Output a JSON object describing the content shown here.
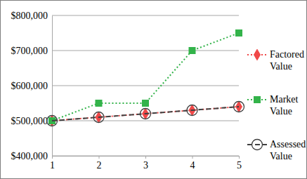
{
  "chart_data": {
    "type": "line",
    "x": [
      1,
      2,
      3,
      4,
      5
    ],
    "xlim": [
      1,
      5
    ],
    "xticks": [
      1,
      2,
      3,
      4,
      5
    ],
    "ylim": [
      400000,
      800000
    ],
    "yticks": [
      {
        "value": 400000,
        "label": "$400,000"
      },
      {
        "value": 500000,
        "label": "$500,000"
      },
      {
        "value": 600000,
        "label": "$600,000"
      },
      {
        "value": 700000,
        "label": "$700,000"
      },
      {
        "value": 800000,
        "label": "$800,000"
      }
    ],
    "grid": true,
    "legend": "right",
    "series": [
      {
        "name": "Factored Value",
        "color": "#f04848",
        "marker": "diamond",
        "line_style": "dotted",
        "values": [
          500000,
          510000,
          520000,
          530000,
          540000
        ]
      },
      {
        "name": "Market Value",
        "color": "#33b34a",
        "marker": "square",
        "line_style": "dotted",
        "values": [
          500000,
          550000,
          550000,
          700000,
          750000
        ]
      },
      {
        "name": "Assessed Value",
        "color": "#404040",
        "marker": "circle",
        "line_style": "dashed",
        "values": [
          500000,
          510000,
          520000,
          530000,
          540000
        ]
      }
    ]
  }
}
